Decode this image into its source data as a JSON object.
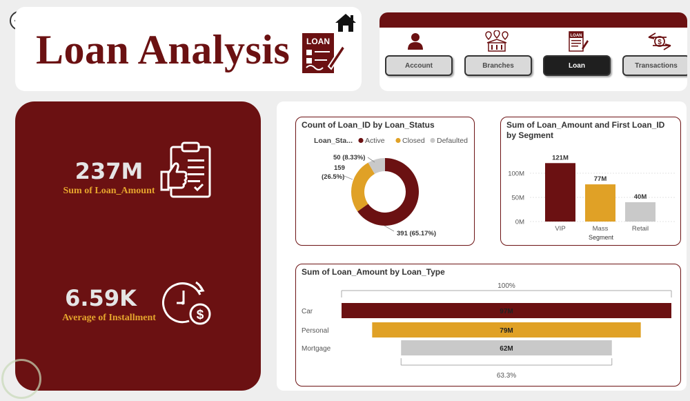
{
  "header": {
    "title": "Loan Analysis",
    "logo_text": "LOAN"
  },
  "nav": {
    "items": [
      {
        "label": "Account",
        "icon": "user-icon",
        "active": false
      },
      {
        "label": "Branches",
        "icon": "branches-icon",
        "active": false
      },
      {
        "label": "Loan",
        "icon": "loan-document-icon",
        "active": true
      },
      {
        "label": "Transactions",
        "icon": "transactions-icon",
        "active": false
      }
    ]
  },
  "kpis": {
    "loan_amount_value": "237M",
    "loan_amount_label": "Sum of Loan_Amount",
    "installment_value": "6.59K",
    "installment_label": "Average of Installment"
  },
  "colors": {
    "maroon": "#6b1112",
    "gold": "#e0a126",
    "gray": "#c9c9c9"
  },
  "chart_data": [
    {
      "type": "pie",
      "title": "Count of Loan_ID by Loan_Status",
      "legend_title": "Loan_Sta...",
      "legend_position": "top",
      "categories": [
        "Active",
        "Closed",
        "Defaulted"
      ],
      "values": [
        391,
        159,
        50
      ],
      "labels": [
        "391 (65.17%)",
        "159 (26.5%)",
        "50 (8.33%)"
      ],
      "colors": [
        "#6b1112",
        "#e0a126",
        "#c9c9c9"
      ]
    },
    {
      "type": "bar",
      "title": "Sum of Loan_Amount and First Loan_ID by Segment",
      "categories": [
        "VIP",
        "Mass",
        "Retail"
      ],
      "values": [
        121,
        77,
        40
      ],
      "data_labels": [
        "121M",
        "77M",
        "40M"
      ],
      "xlabel": "Segment",
      "ylabel": "",
      "yticks": [
        "0M",
        "50M",
        "100M"
      ],
      "ylim": [
        0,
        130
      ],
      "grid": true,
      "colors": [
        "#6b1112",
        "#e0a126",
        "#c9c9c9"
      ]
    },
    {
      "type": "bar",
      "title": "Sum of Loan_Amount by Loan_Type",
      "categories": [
        "Car",
        "Personal",
        "Mortgage"
      ],
      "values": [
        97,
        79,
        62
      ],
      "data_labels": [
        "97M",
        "79M",
        "62M"
      ],
      "top_label": "100%",
      "bottom_label": "63.3%",
      "colors": [
        "#6b1112",
        "#e0a126",
        "#c9c9c9"
      ]
    }
  ]
}
